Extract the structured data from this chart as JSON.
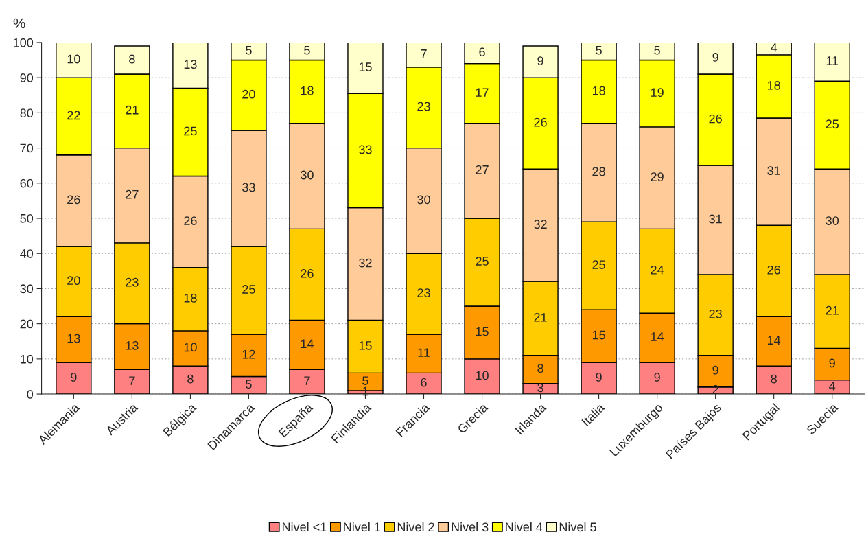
{
  "chart_data": {
    "type": "bar",
    "stacked": true,
    "ylabel": "%",
    "categories": [
      "Alemania",
      "Austria",
      "Bélgica",
      "Dinamarca",
      "España",
      "Finlandia",
      "Francia",
      "Grecia",
      "Irlanda",
      "Italia",
      "Luxemburgo",
      "Países Bajos",
      "Portugal",
      "Suecia"
    ],
    "series": [
      {
        "name": "Nivel <1",
        "color": "#ff8080",
        "values": [
          9,
          7,
          8,
          5,
          7,
          1,
          6,
          10,
          3,
          9,
          9,
          2,
          8,
          4
        ],
        "value_labels": [
          "9",
          "7",
          "8",
          "5",
          "7",
          "1",
          "6",
          "10",
          "3",
          "9",
          "9",
          "2",
          "8",
          "4"
        ]
      },
      {
        "name": "Nivel 1",
        "color": "#ff9900",
        "values": [
          13,
          13,
          10,
          12,
          14,
          5,
          11,
          15,
          8,
          15,
          14,
          9,
          14,
          9
        ],
        "value_labels": [
          "13",
          "13",
          "10",
          "12",
          "14",
          "5",
          "11",
          "15",
          "8",
          "15",
          "14",
          "9",
          "14",
          "9"
        ]
      },
      {
        "name": "Nivel 2",
        "color": "#ffcc00",
        "values": [
          20,
          23,
          18,
          25,
          26,
          15,
          23,
          25,
          21,
          25,
          24,
          23,
          26,
          21
        ],
        "value_labels": [
          "20",
          "23",
          "18",
          "25",
          "26",
          "15",
          "23",
          "25",
          "21",
          "25",
          "24",
          "23",
          "26",
          "21"
        ]
      },
      {
        "name": "Nivel 3",
        "color": "#ffcc99",
        "values": [
          26,
          27,
          26,
          33,
          30,
          32,
          30,
          27,
          32,
          28,
          29,
          31,
          30.5,
          30
        ],
        "value_labels": [
          "26",
          "27",
          "26",
          "33",
          "30",
          "32",
          "30",
          "27",
          "32",
          "28",
          "29",
          "31",
          "31",
          "30"
        ]
      },
      {
        "name": "Nivel 4",
        "color": "#ffff00",
        "values": [
          22,
          21,
          25,
          20,
          18,
          32.5,
          23,
          17,
          26,
          18,
          19,
          26,
          18,
          25
        ],
        "value_labels": [
          "22",
          "21",
          "25",
          "20",
          "18",
          "33",
          "23",
          "17",
          "26",
          "18",
          "19",
          "26",
          "18",
          "25"
        ]
      },
      {
        "name": "Nivel 5",
        "color": "#ffffcc",
        "values": [
          10,
          8,
          13,
          5,
          5,
          14.5,
          7,
          6,
          9,
          5,
          5,
          9,
          3.5,
          11
        ],
        "value_labels": [
          "10",
          "8",
          "13",
          "5",
          "5",
          "15",
          "7",
          "6",
          "9",
          "5",
          "5",
          "9",
          "4",
          "11"
        ]
      }
    ],
    "ylim": [
      0,
      100
    ],
    "yticks": [
      0,
      10,
      20,
      30,
      40,
      50,
      60,
      70,
      80,
      90,
      100
    ],
    "grid": "y",
    "legend": "bottom"
  }
}
